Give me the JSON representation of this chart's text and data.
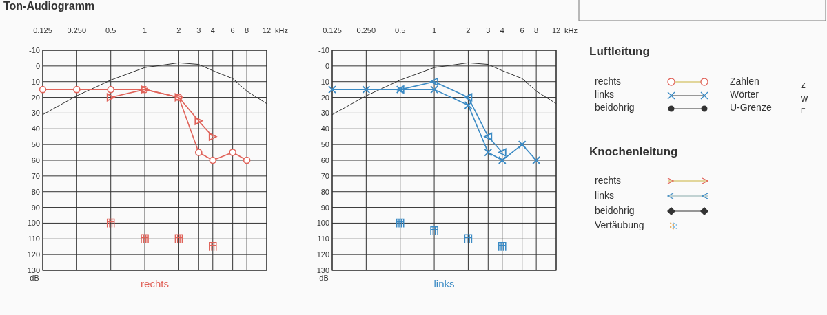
{
  "chart_data": [
    {
      "type": "line",
      "title": "Ton-Audiogramm",
      "subtitle": "rechts",
      "xlabel": "kHz",
      "ylabel": "dB",
      "log": "x",
      "grid": true,
      "x": [
        0.125,
        0.25,
        0.5,
        1,
        2,
        3,
        4,
        6,
        8,
        12
      ],
      "xlim": [
        0.125,
        12
      ],
      "xticks": [
        0.125,
        {
          "value": 0.25,
          "label": "0.250"
        },
        0.5,
        1,
        2,
        3,
        4,
        6,
        8,
        12
      ],
      "ylim": [
        130,
        -10
      ],
      "yticks": [
        -10,
        0,
        10,
        20,
        30,
        40,
        50,
        60,
        70,
        80,
        90,
        100,
        110,
        120,
        130
      ],
      "series": [
        {
          "type": "line",
          "color": "#333333",
          "marker": "none",
          "values": [
            31,
            19,
            9,
            1,
            -2,
            -1,
            3,
            8,
            16,
            24
          ]
        },
        {
          "type": "line",
          "color": "#e0635a",
          "marker": "circle",
          "x": [
            0.125,
            0.25,
            0.5,
            1,
            2,
            3,
            4,
            6,
            8
          ],
          "values": [
            15,
            15,
            15,
            15,
            20,
            55,
            60,
            55,
            60
          ]
        },
        {
          "type": "line",
          "color": "#e0635a",
          "marker": "triangle",
          "x": [
            0.5,
            1,
            2,
            3,
            4
          ],
          "values": [
            20,
            15,
            20,
            35,
            45
          ]
        },
        {
          "type": "scatter",
          "color": "#e0635a",
          "x": [
            0.5,
            1,
            2,
            4
          ],
          "values": [
            100,
            110,
            110,
            115
          ]
        }
      ]
    },
    {
      "type": "line",
      "subtitle": "links",
      "xlabel": "kHz",
      "ylabel": "dB",
      "log": "x",
      "grid": true,
      "x": [
        0.125,
        0.25,
        0.5,
        1,
        2,
        3,
        4,
        6,
        8,
        12
      ],
      "xlim": [
        0.125,
        12
      ],
      "xticks": [
        0.125,
        {
          "value": 0.25,
          "label": "0.250"
        },
        0.5,
        1,
        2,
        3,
        4,
        6,
        8,
        12
      ],
      "ylim": [
        130,
        -10
      ],
      "yticks": [
        -10,
        0,
        10,
        20,
        30,
        40,
        50,
        60,
        70,
        80,
        90,
        100,
        110,
        120,
        130
      ],
      "series": [
        {
          "type": "line",
          "color": "#333333",
          "marker": "none",
          "values": [
            31,
            19,
            9,
            1,
            -2,
            -1,
            3,
            8,
            16,
            24
          ]
        },
        {
          "type": "line",
          "color": "#3a8ac4",
          "marker": "cross",
          "x": [
            0.125,
            0.25,
            0.5,
            1,
            2,
            3,
            4,
            6,
            8
          ],
          "values": [
            15,
            15,
            15,
            15,
            25,
            55,
            60,
            50,
            60
          ]
        },
        {
          "type": "line",
          "color": "#3a8ac4",
          "marker": "triangle",
          "x": [
            0.5,
            1,
            2,
            3,
            4
          ],
          "values": [
            15,
            10,
            20,
            45,
            55
          ]
        },
        {
          "type": "scatter",
          "color": "#3a8ac4",
          "x": [
            0.5,
            1,
            2,
            4
          ],
          "values": [
            100,
            105,
            110,
            115
          ]
        }
      ]
    },
    {
      "type": "other",
      "title": "Luftleitung",
      "annotations": [
        "rechts",
        "links",
        "beidohrig",
        "Zahlen",
        "Wörter",
        "U-Grenze",
        "z",
        "w",
        "E",
        "Knochenleitung",
        "rechts",
        "links",
        "beidohrig",
        "Vertäubung"
      ]
    }
  ]
}
